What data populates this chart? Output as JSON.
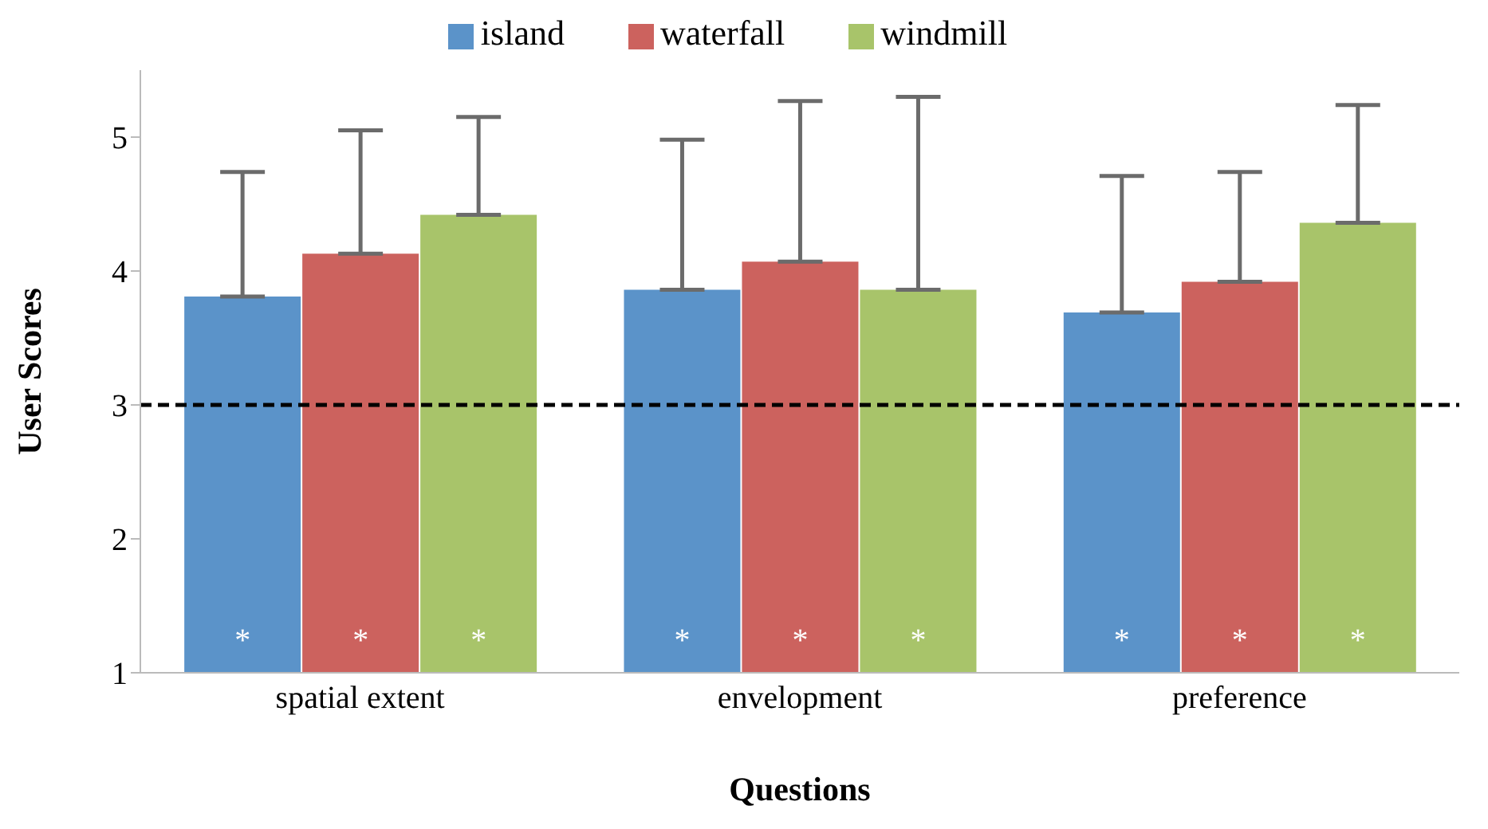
{
  "chart_data": {
    "type": "bar",
    "xlabel": "Questions",
    "ylabel": "User Scores",
    "categories": [
      "spatial extent",
      "envelopment",
      "preference"
    ],
    "series": [
      {
        "name": "island",
        "color": "#5b93c9",
        "values": [
          3.81,
          3.86,
          3.69
        ],
        "errors": [
          [
            3.81,
            4.74
          ],
          [
            3.86,
            4.98
          ],
          [
            3.69,
            4.71
          ]
        ],
        "value_labels": [
          "*",
          "*",
          "*"
        ]
      },
      {
        "name": "waterfall",
        "color": "#cc625e",
        "values": [
          4.13,
          4.07,
          3.92
        ],
        "errors": [
          [
            4.13,
            5.05
          ],
          [
            4.07,
            5.27
          ],
          [
            3.92,
            4.74
          ]
        ],
        "value_labels": [
          "*",
          "*",
          "*"
        ]
      },
      {
        "name": "windmill",
        "color": "#a8c46a",
        "values": [
          4.42,
          3.86,
          4.36
        ],
        "errors": [
          [
            4.42,
            5.15
          ],
          [
            3.86,
            5.3
          ],
          [
            4.36,
            5.24
          ]
        ],
        "value_labels": [
          "*",
          "*",
          "*"
        ]
      }
    ],
    "ylim": [
      1,
      5.5
    ],
    "yticks": [
      1,
      2,
      3,
      4,
      5
    ],
    "grid": false,
    "legend": "top",
    "ref_lines": [
      {
        "axis": "y",
        "value": 3,
        "color": "#000000",
        "line_style": "dashed"
      }
    ]
  }
}
